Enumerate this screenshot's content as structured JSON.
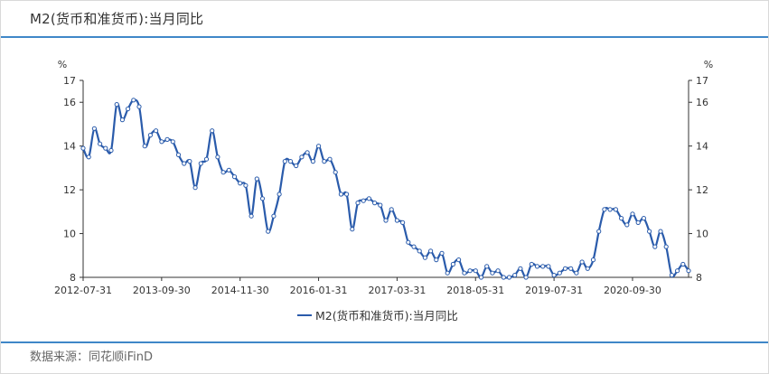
{
  "title": "M2(货币和准货币):当月同比",
  "source": "数据来源：同花顺iFinD",
  "colors": {
    "series": "#2a5bab",
    "accent": "#3f87c8",
    "axis": "#333333"
  },
  "chart_data": {
    "type": "line",
    "title": "M2(货币和准货币):当月同比",
    "ylabel_left": "%",
    "ylabel_right": "%",
    "ylim": [
      8,
      17
    ],
    "yticks": [
      8,
      10,
      12,
      14,
      16,
      17
    ],
    "xlim": [
      "2012-07-31",
      "2021-07-31"
    ],
    "xtick_labels": [
      "2012-07-31",
      "2013-09-30",
      "2014-11-30",
      "2016-01-31",
      "2017-03-31",
      "2018-05-31",
      "2019-07-31",
      "2020-09-30"
    ],
    "legend": "top-center below axis",
    "grid": false,
    "series": [
      {
        "name": "M2(货币和准货币):当月同比",
        "x": [
          "2012-07",
          "2012-08",
          "2012-09",
          "2012-10",
          "2012-11",
          "2012-12",
          "2013-01",
          "2013-02",
          "2013-03",
          "2013-04",
          "2013-05",
          "2013-06",
          "2013-07",
          "2013-08",
          "2013-09",
          "2013-10",
          "2013-11",
          "2013-12",
          "2014-01",
          "2014-02",
          "2014-03",
          "2014-04",
          "2014-05",
          "2014-06",
          "2014-07",
          "2014-08",
          "2014-09",
          "2014-10",
          "2014-11",
          "2014-12",
          "2015-01",
          "2015-02",
          "2015-03",
          "2015-04",
          "2015-05",
          "2015-06",
          "2015-07",
          "2015-08",
          "2015-09",
          "2015-10",
          "2015-11",
          "2015-12",
          "2016-01",
          "2016-02",
          "2016-03",
          "2016-04",
          "2016-05",
          "2016-06",
          "2016-07",
          "2016-08",
          "2016-09",
          "2016-10",
          "2016-11",
          "2016-12",
          "2017-01",
          "2017-02",
          "2017-03",
          "2017-04",
          "2017-05",
          "2017-06",
          "2017-07",
          "2017-08",
          "2017-09",
          "2017-10",
          "2017-11",
          "2017-12",
          "2018-01",
          "2018-02",
          "2018-03",
          "2018-04",
          "2018-05",
          "2018-06",
          "2018-07",
          "2018-08",
          "2018-09",
          "2018-10",
          "2018-11",
          "2018-12",
          "2019-01",
          "2019-02",
          "2019-03",
          "2019-04",
          "2019-05",
          "2019-06",
          "2019-07",
          "2019-08",
          "2019-09",
          "2019-10",
          "2019-11",
          "2019-12",
          "2020-01",
          "2020-02",
          "2020-03",
          "2020-04",
          "2020-05",
          "2020-06",
          "2020-07",
          "2020-08",
          "2020-09",
          "2020-10",
          "2020-11",
          "2020-12",
          "2021-01",
          "2021-02",
          "2021-03",
          "2021-04",
          "2021-05",
          "2021-06",
          "2021-07"
        ],
        "y": [
          13.9,
          13.5,
          14.8,
          14.1,
          13.9,
          13.8,
          15.9,
          15.2,
          15.7,
          16.1,
          15.8,
          14.0,
          14.5,
          14.7,
          14.2,
          14.3,
          14.2,
          13.6,
          13.2,
          13.3,
          12.1,
          13.2,
          13.4,
          14.7,
          13.5,
          12.8,
          12.9,
          12.6,
          12.3,
          12.2,
          10.8,
          12.5,
          11.6,
          10.1,
          10.8,
          11.8,
          13.3,
          13.3,
          13.1,
          13.5,
          13.7,
          13.3,
          14.0,
          13.3,
          13.4,
          12.8,
          11.8,
          11.8,
          10.2,
          11.4,
          11.5,
          11.6,
          11.4,
          11.3,
          10.6,
          11.1,
          10.6,
          10.5,
          9.6,
          9.4,
          9.2,
          8.9,
          9.2,
          8.8,
          9.1,
          8.2,
          8.6,
          8.8,
          8.2,
          8.3,
          8.3,
          8.0,
          8.5,
          8.2,
          8.3,
          8.0,
          8.0,
          8.1,
          8.4,
          8.0,
          8.6,
          8.5,
          8.5,
          8.5,
          8.1,
          8.2,
          8.4,
          8.4,
          8.2,
          8.7,
          8.4,
          8.8,
          10.1,
          11.1,
          11.1,
          11.1,
          10.7,
          10.4,
          10.9,
          10.5,
          10.7,
          10.1,
          9.4,
          10.1,
          9.4,
          8.1,
          8.3,
          8.6,
          8.3
        ]
      }
    ]
  }
}
